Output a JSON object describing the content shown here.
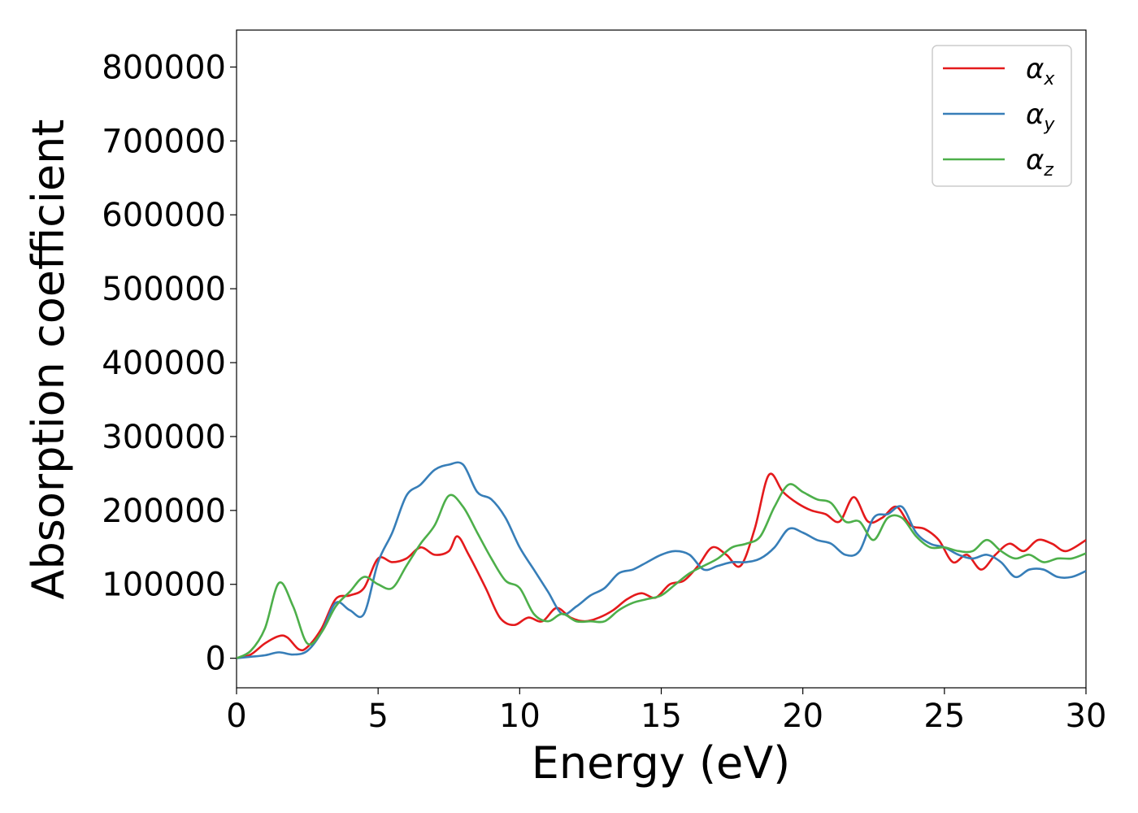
{
  "chart_data": {
    "type": "line",
    "xlabel": "Energy (eV)",
    "ylabel": "Absorption coefficient",
    "xlim": [
      0,
      30
    ],
    "ylim": [
      -40000,
      850000
    ],
    "xticks": [
      0,
      5,
      10,
      15,
      20,
      25,
      30
    ],
    "xtick_labels": [
      "0",
      "5",
      "10",
      "15",
      "20",
      "25",
      "30"
    ],
    "yticks": [
      0,
      100000,
      200000,
      300000,
      400000,
      500000,
      600000,
      700000,
      800000
    ],
    "ytick_labels": [
      "0",
      "100000",
      "200000",
      "300000",
      "400000",
      "500000",
      "600000",
      "700000",
      "800000"
    ],
    "grid": false,
    "legend_position": "top-right",
    "series": [
      {
        "name": "αx",
        "symbol": "α",
        "subscript": "x",
        "color": "#e41a1c",
        "x": [
          0,
          0.5,
          1,
          1.5,
          1.8,
          2.2,
          2.5,
          3,
          3.5,
          4,
          4.5,
          5,
          5.5,
          6,
          6.5,
          7,
          7.5,
          7.8,
          8.2,
          8.8,
          9.3,
          9.8,
          10.3,
          10.8,
          11.3,
          11.8,
          12.3,
          12.8,
          13.3,
          13.8,
          14.3,
          14.8,
          15.3,
          15.8,
          16.3,
          16.8,
          17.3,
          17.8,
          18.3,
          18.8,
          19.3,
          19.8,
          20.3,
          20.8,
          21.3,
          21.8,
          22.3,
          22.8,
          23.3,
          23.8,
          24.3,
          24.8,
          25.3,
          25.8,
          26.3,
          26.8,
          27.3,
          27.8,
          28.3,
          28.8,
          29.3,
          30
        ],
        "y": [
          0,
          5000,
          20000,
          30000,
          28000,
          12000,
          15000,
          40000,
          80000,
          85000,
          95000,
          135000,
          130000,
          135000,
          150000,
          140000,
          145000,
          165000,
          140000,
          95000,
          55000,
          45000,
          55000,
          50000,
          68000,
          55000,
          50000,
          55000,
          65000,
          80000,
          88000,
          82000,
          100000,
          105000,
          125000,
          150000,
          140000,
          125000,
          175000,
          248000,
          225000,
          210000,
          200000,
          195000,
          185000,
          218000,
          185000,
          190000,
          205000,
          180000,
          175000,
          160000,
          130000,
          140000,
          120000,
          140000,
          155000,
          145000,
          160000,
          155000,
          145000,
          160000
        ]
      },
      {
        "name": "αy",
        "symbol": "α",
        "subscript": "y",
        "color": "#377eb8",
        "x": [
          0,
          0.5,
          1,
          1.5,
          2,
          2.5,
          3,
          3.5,
          4,
          4.5,
          5,
          5.5,
          6,
          6.5,
          7,
          7.5,
          8,
          8.5,
          9,
          9.5,
          10,
          10.5,
          11,
          11.5,
          12,
          12.5,
          13,
          13.5,
          14,
          14.5,
          15,
          15.5,
          16,
          16.5,
          17,
          17.5,
          18,
          18.5,
          19,
          19.5,
          20,
          20.5,
          21,
          21.5,
          22,
          22.5,
          23,
          23.5,
          24,
          24.5,
          25,
          25.5,
          26,
          26.5,
          27,
          27.5,
          28,
          28.5,
          29,
          29.5,
          30
        ],
        "y": [
          0,
          2000,
          4000,
          8000,
          5000,
          10000,
          35000,
          75000,
          65000,
          60000,
          130000,
          170000,
          220000,
          235000,
          255000,
          262000,
          262000,
          225000,
          215000,
          190000,
          150000,
          120000,
          90000,
          60000,
          70000,
          85000,
          95000,
          115000,
          120000,
          130000,
          140000,
          145000,
          140000,
          120000,
          125000,
          130000,
          130000,
          135000,
          150000,
          175000,
          170000,
          160000,
          155000,
          140000,
          145000,
          190000,
          195000,
          205000,
          170000,
          155000,
          150000,
          140000,
          135000,
          140000,
          130000,
          110000,
          120000,
          120000,
          110000,
          110000,
          118000
        ]
      },
      {
        "name": "αz",
        "symbol": "α",
        "subscript": "z",
        "color": "#4daf4a",
        "x": [
          0,
          0.5,
          1,
          1.5,
          2,
          2.5,
          3,
          3.5,
          4,
          4.5,
          5,
          5.5,
          6,
          6.5,
          7,
          7.5,
          8,
          8.5,
          9,
          9.5,
          10,
          10.5,
          11,
          11.5,
          12,
          12.5,
          13,
          13.5,
          14,
          14.5,
          15,
          15.5,
          16,
          16.5,
          17,
          17.5,
          18,
          18.5,
          19,
          19.5,
          20,
          20.5,
          21,
          21.5,
          22,
          22.5,
          23,
          23.5,
          24,
          24.5,
          25,
          25.5,
          26,
          26.5,
          27,
          27.5,
          28,
          28.5,
          29,
          29.5,
          30
        ],
        "y": [
          0,
          10000,
          40000,
          102000,
          70000,
          20000,
          35000,
          70000,
          90000,
          110000,
          100000,
          95000,
          125000,
          155000,
          180000,
          220000,
          205000,
          170000,
          135000,
          105000,
          95000,
          60000,
          50000,
          60000,
          50000,
          50000,
          50000,
          65000,
          75000,
          80000,
          85000,
          100000,
          115000,
          125000,
          135000,
          150000,
          155000,
          165000,
          205000,
          235000,
          225000,
          215000,
          210000,
          185000,
          185000,
          160000,
          190000,
          190000,
          165000,
          150000,
          150000,
          145000,
          145000,
          160000,
          145000,
          135000,
          140000,
          130000,
          135000,
          135000,
          142000
        ]
      }
    ]
  }
}
